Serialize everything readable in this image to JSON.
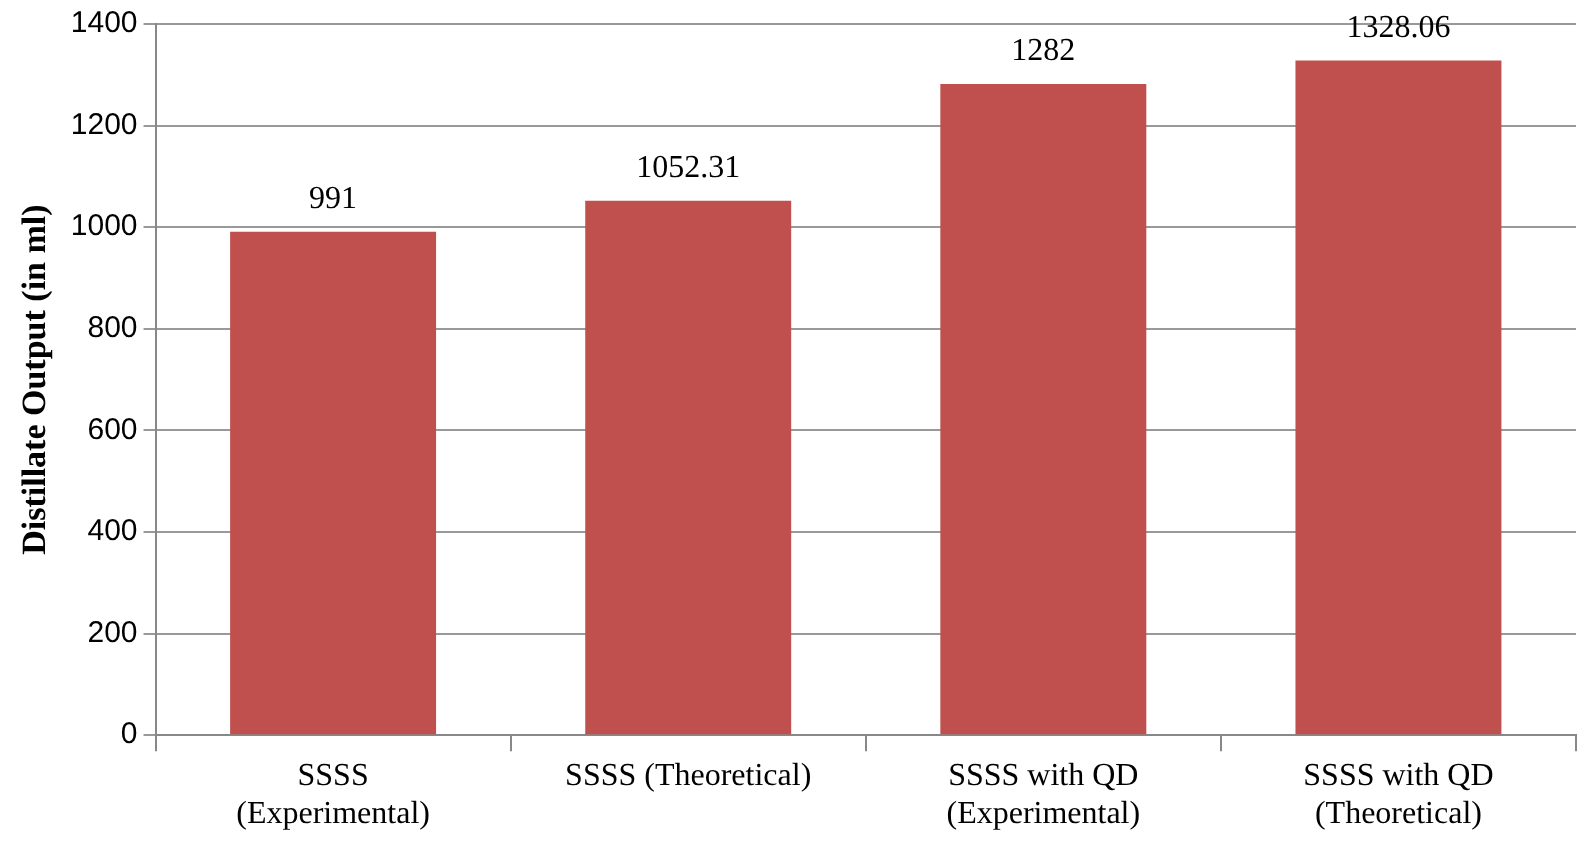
{
  "chart_data": {
    "type": "bar",
    "ylabel": "Distillate Output (in ml)",
    "categories": [
      "SSSS\n(Experimental)",
      "SSSS (Theoretical)",
      "SSSS with QD\n(Experimental)",
      "SSSS with QD\n(Theoretical)"
    ],
    "values": [
      991,
      1052.31,
      1282,
      1328.06
    ],
    "color": "#c0504d",
    "ylim": [
      0,
      1400
    ],
    "yticks": [
      0,
      200,
      400,
      600,
      800,
      1000,
      1200,
      1400
    ],
    "grid": "y",
    "data_labels": true
  }
}
